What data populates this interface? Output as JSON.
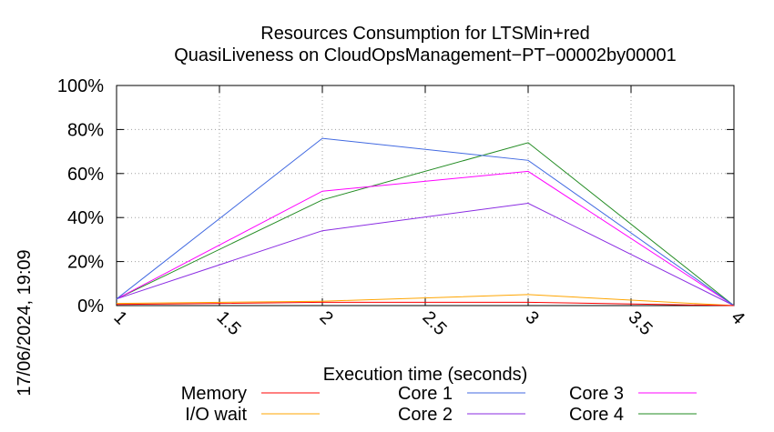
{
  "chart_data": {
    "type": "line",
    "title": [
      "Resources Consumption for LTSMin+red",
      "QuasiLiveness on CloudOpsManagement−PT−00002by00001"
    ],
    "xlabel": "Execution time (seconds)",
    "ylabel": "",
    "side_label": "17/06/2024, 19:09",
    "xlim": [
      1,
      4
    ],
    "ylim": [
      0,
      100
    ],
    "x_ticks": [
      {
        "v": 1,
        "label": "1"
      },
      {
        "v": 1.5,
        "label": "1.5"
      },
      {
        "v": 2,
        "label": "2"
      },
      {
        "v": 2.5,
        "label": "2.5"
      },
      {
        "v": 3,
        "label": "3"
      },
      {
        "v": 3.5,
        "label": "3.5"
      },
      {
        "v": 4,
        "label": "4"
      }
    ],
    "y_ticks": [
      {
        "v": 0,
        "label": "0%"
      },
      {
        "v": 20,
        "label": "20%"
      },
      {
        "v": 40,
        "label": "40%"
      },
      {
        "v": 60,
        "label": "60%"
      },
      {
        "v": 80,
        "label": "80%"
      },
      {
        "v": 100,
        "label": "100%"
      }
    ],
    "grid": true,
    "legend_position": "bottom",
    "x": [
      1,
      2,
      3,
      4
    ],
    "series": [
      {
        "name": "Memory",
        "color": "#ff0000",
        "values": [
          0.5,
          1.5,
          1.5,
          0
        ]
      },
      {
        "name": "I/O wait",
        "color": "#ffa500",
        "values": [
          1,
          2,
          5,
          0
        ]
      },
      {
        "name": "Core 1",
        "color": "#4169e1",
        "values": [
          3,
          76,
          66,
          0
        ]
      },
      {
        "name": "Core 2",
        "color": "#8a2be2",
        "values": [
          3,
          34,
          46.5,
          0
        ]
      },
      {
        "name": "Core 3",
        "color": "#ff00ff",
        "values": [
          3,
          52,
          61,
          0
        ]
      },
      {
        "name": "Core 4",
        "color": "#228b22",
        "values": [
          3,
          48,
          74,
          0
        ]
      }
    ]
  }
}
